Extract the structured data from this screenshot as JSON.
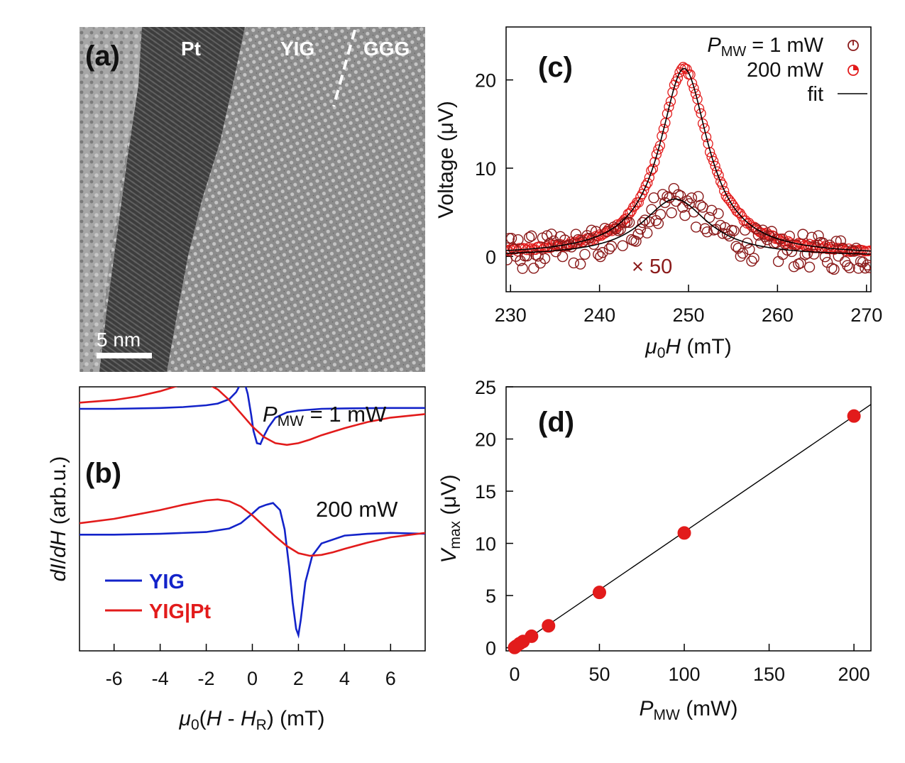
{
  "colors": {
    "red": "#e21b1b",
    "blue": "#1323c9",
    "darkred": "#8a1a1a",
    "black": "#000000"
  },
  "panel_a": {
    "label": "(a)",
    "regions": [
      "Pt",
      "YIG",
      "GGG"
    ],
    "scalebar": "5 nm"
  },
  "chart_data": [
    {
      "id": "b",
      "type": "line",
      "panel_label": "(b)",
      "xlabel": "μ0(H - HR) (mT)",
      "ylabel": "dI/dH (arb.u.)",
      "xlim": [
        -7.5,
        7.5
      ],
      "ylim": [
        -1.8,
        1.2
      ],
      "xticks": [
        -6,
        -4,
        -2,
        0,
        2,
        4,
        6
      ],
      "annotations": [
        "PMW = 1 mW",
        "200 mW"
      ],
      "legend": [
        "YIG",
        "YIG|Pt"
      ],
      "series": [
        {
          "name": "YIG",
          "power": "1 mW",
          "x": [
            -7.5,
            -6,
            -4,
            -3,
            -2,
            -1.5,
            -1,
            -0.7,
            -0.5,
            -0.35,
            -0.2,
            -0.05,
            0.05,
            0.2,
            0.35,
            0.5,
            0.7,
            1,
            1.5,
            2,
            3,
            4,
            6,
            7.5
          ],
          "y": [
            0.95,
            0.95,
            0.96,
            0.97,
            0.99,
            1.01,
            1.06,
            1.14,
            1.24,
            1.26,
            1.12,
            0.88,
            0.7,
            0.56,
            0.55,
            0.64,
            0.74,
            0.85,
            0.91,
            0.93,
            0.95,
            0.955,
            0.96,
            0.96
          ]
        },
        {
          "name": "YIG|Pt",
          "power": "1 mW",
          "x": [
            -7.5,
            -6,
            -5,
            -4,
            -3,
            -2.5,
            -2,
            -1.5,
            -1,
            -0.5,
            0,
            0.5,
            1,
            1.5,
            2,
            2.5,
            3,
            4,
            5,
            6,
            7.5
          ],
          "y": [
            1.02,
            1.05,
            1.09,
            1.15,
            1.23,
            1.26,
            1.24,
            1.17,
            1.05,
            0.9,
            0.75,
            0.63,
            0.56,
            0.54,
            0.56,
            0.6,
            0.65,
            0.73,
            0.8,
            0.85,
            0.89
          ]
        },
        {
          "name": "YIG",
          "power": "200 mW",
          "x": [
            -7.5,
            -6,
            -4,
            -2,
            -1,
            -0.5,
            0,
            0.3,
            0.6,
            0.9,
            1.2,
            1.4,
            1.6,
            1.75,
            1.9,
            2.0,
            2.1,
            2.3,
            2.6,
            3,
            4,
            5,
            6,
            7.5
          ],
          "y": [
            -0.48,
            -0.48,
            -0.47,
            -0.45,
            -0.41,
            -0.35,
            -0.24,
            -0.17,
            -0.14,
            -0.12,
            -0.2,
            -0.42,
            -0.85,
            -1.25,
            -1.55,
            -1.62,
            -1.45,
            -1.02,
            -0.72,
            -0.58,
            -0.49,
            -0.47,
            -0.46,
            -0.47
          ]
        },
        {
          "name": "YIG|Pt",
          "power": "200 mW",
          "x": [
            -7.5,
            -6,
            -5,
            -4,
            -3,
            -2,
            -1.5,
            -1,
            -0.5,
            0,
            0.5,
            1,
            1.5,
            2,
            2.5,
            3,
            3.5,
            4,
            5,
            6,
            7.5
          ],
          "y": [
            -0.35,
            -0.3,
            -0.25,
            -0.2,
            -0.14,
            -0.09,
            -0.08,
            -0.1,
            -0.16,
            -0.26,
            -0.38,
            -0.5,
            -0.61,
            -0.69,
            -0.72,
            -0.71,
            -0.68,
            -0.64,
            -0.57,
            -0.51,
            -0.46
          ]
        }
      ]
    },
    {
      "id": "c",
      "type": "scatter",
      "panel_label": "(c)",
      "xlabel": "μ0H (mT)",
      "ylabel": "Voltage (μV)",
      "xlim": [
        229.5,
        270.5
      ],
      "ylim": [
        -4,
        26
      ],
      "xticks": [
        230,
        240,
        250,
        260,
        270
      ],
      "yticks": [
        0,
        10,
        20
      ],
      "annotation": "× 50",
      "legend": [
        "PMW = 1 mW",
        "200 mW",
        "fit"
      ],
      "series": [
        {
          "name": "200 mW",
          "model": "lorentzian",
          "center": 249.5,
          "halfwidth": 3.3,
          "amplitude": 21.2,
          "offset": 0.1
        },
        {
          "name": "1 mW (×50)",
          "model": "lorentzian",
          "center": 248.5,
          "halfwidth": 4.5,
          "amplitude": 6.5,
          "offset": 0.0,
          "scatter": 1.5
        },
        {
          "name": "fit",
          "type": "line"
        }
      ]
    },
    {
      "id": "d",
      "type": "scatter",
      "panel_label": "(d)",
      "xlabel": "PMW (mW)",
      "ylabel": "Vmax (μV)",
      "xlim": [
        -5,
        210
      ],
      "ylim": [
        -0.3,
        25
      ],
      "xticks": [
        0,
        50,
        100,
        150,
        200
      ],
      "yticks": [
        0,
        5,
        10,
        15,
        20,
        25
      ],
      "x": [
        0,
        1,
        3,
        5,
        10,
        20,
        50,
        100,
        200
      ],
      "y": [
        0.02,
        0.15,
        0.4,
        0.6,
        1.1,
        2.1,
        5.3,
        11.0,
        22.2
      ],
      "fit": {
        "slope": 0.111,
        "intercept": 0.0
      }
    }
  ]
}
